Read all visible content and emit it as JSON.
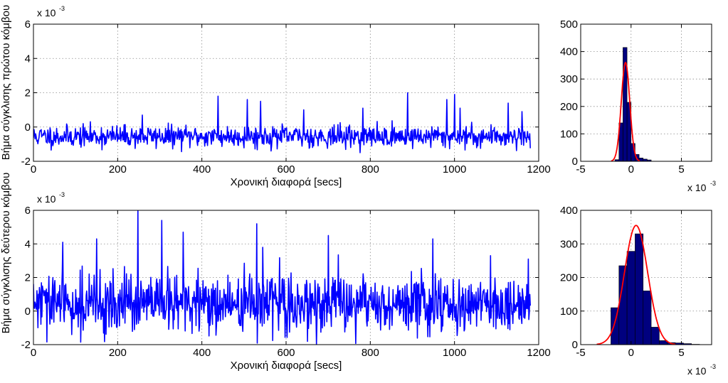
{
  "colors": {
    "series": "#0000ff",
    "bars": "#00007f",
    "fit": "#ff0000",
    "grid": "#8c8c8c"
  },
  "chart_data": [
    {
      "type": "line",
      "id": "ts-node1",
      "xlabel": "Χρονική διαφορά [secs]",
      "ylabel": "Βήμα σύγκλισης πρώτου κόμβου",
      "xlim": [
        0,
        1200
      ],
      "ylim": [
        -2,
        6
      ],
      "y_scale_label": "x 10",
      "y_scale_exp": "-3",
      "x_ticks": [
        "0",
        "200",
        "400",
        "600",
        "800",
        "1000",
        "1200"
      ],
      "y_ticks": [
        "-2",
        "0",
        "2",
        "4",
        "6"
      ],
      "grid": true,
      "series": [
        {
          "x_start": 0,
          "x_end": 1180,
          "points": 900,
          "mean": -0.55,
          "noise": 0.42,
          "seed": 11,
          "spikes": [
            [
              258,
              0.7
            ],
            [
              438,
              1.8
            ],
            [
              508,
              1.6
            ],
            [
              540,
              1.5
            ],
            [
              642,
              1.0
            ],
            [
              782,
              1.1
            ],
            [
              888,
              2.0
            ],
            [
              982,
              1.6
            ],
            [
              1000,
              1.9
            ],
            [
              1013,
              1.1
            ],
            [
              1128,
              1.4
            ],
            [
              1160,
              0.9
            ]
          ]
        }
      ]
    },
    {
      "type": "bar",
      "id": "hist-node1",
      "xlim": [
        -5,
        8
      ],
      "ylim": [
        0,
        500
      ],
      "x_scale_label": "x 10",
      "x_scale_exp": "-3",
      "x_ticks": [
        "-5",
        "0",
        "5"
      ],
      "y_ticks": [
        "0",
        "100",
        "200",
        "300",
        "400",
        "500"
      ],
      "grid": true,
      "bins": [
        {
          "x0": -1.6,
          "x1": -1.2,
          "count": 6
        },
        {
          "x0": -1.2,
          "x1": -0.8,
          "count": 140
        },
        {
          "x0": -0.8,
          "x1": -0.4,
          "count": 415
        },
        {
          "x0": -0.4,
          "x1": 0.0,
          "count": 215
        },
        {
          "x0": 0.0,
          "x1": 0.4,
          "count": 65
        },
        {
          "x0": 0.4,
          "x1": 0.8,
          "count": 25
        },
        {
          "x0": 0.8,
          "x1": 1.2,
          "count": 12
        },
        {
          "x0": 1.2,
          "x1": 1.6,
          "count": 8
        },
        {
          "x0": 1.6,
          "x1": 2.0,
          "count": 5
        }
      ],
      "fit": {
        "mean": -0.55,
        "sd": 0.42,
        "peak": 360
      }
    },
    {
      "type": "line",
      "id": "ts-node2",
      "xlabel": "Χρονική διαφορά [secs]",
      "ylabel": "Βήμα σύγκλισης δεύτερου κόμβου",
      "xlim": [
        0,
        1200
      ],
      "ylim": [
        -2,
        6
      ],
      "y_scale_label": "x 10",
      "y_scale_exp": "-3",
      "x_ticks": [
        "0",
        "200",
        "400",
        "600",
        "800",
        "1000",
        "1200"
      ],
      "y_ticks": [
        "-2",
        "0",
        "2",
        "4",
        "6"
      ],
      "grid": true,
      "series": [
        {
          "x_start": 0,
          "x_end": 1180,
          "points": 1000,
          "mean": 0.4,
          "noise": 1.15,
          "seed": 29,
          "spikes": [
            [
              70,
              4.1
            ],
            [
              150,
              4.3
            ],
            [
              248,
              6.0
            ],
            [
              305,
              5.4
            ],
            [
              355,
              4.7
            ],
            [
              530,
              5.2
            ],
            [
              545,
              3.8
            ],
            [
              700,
              4.5
            ],
            [
              948,
              4.3
            ],
            [
              1085,
              3.3
            ],
            [
              1175,
              3.1
            ]
          ]
        }
      ]
    },
    {
      "type": "bar",
      "id": "hist-node2",
      "xlim": [
        -5,
        8
      ],
      "ylim": [
        0,
        400
      ],
      "x_scale_label": "x 10",
      "x_scale_exp": "-3",
      "x_ticks": [
        "-5",
        "0",
        "5"
      ],
      "y_ticks": [
        "0",
        "100",
        "200",
        "300",
        "400"
      ],
      "grid": true,
      "bins": [
        {
          "x0": -2.0,
          "x1": -1.2,
          "count": 110
        },
        {
          "x0": -1.2,
          "x1": -0.4,
          "count": 235
        },
        {
          "x0": -0.4,
          "x1": 0.4,
          "count": 278
        },
        {
          "x0": 0.4,
          "x1": 1.2,
          "count": 330
        },
        {
          "x0": 1.2,
          "x1": 2.0,
          "count": 160
        },
        {
          "x0": 2.0,
          "x1": 2.8,
          "count": 52
        },
        {
          "x0": 2.8,
          "x1": 3.6,
          "count": 12
        },
        {
          "x0": 3.6,
          "x1": 4.4,
          "count": 6
        },
        {
          "x0": 4.4,
          "x1": 5.2,
          "count": 5
        },
        {
          "x0": 5.2,
          "x1": 6.0,
          "count": 3
        },
        {
          "x0": 6.0,
          "x1": 6.8,
          "count": 1
        }
      ],
      "fit": {
        "mean": 0.5,
        "sd": 1.15,
        "peak": 355
      }
    }
  ]
}
